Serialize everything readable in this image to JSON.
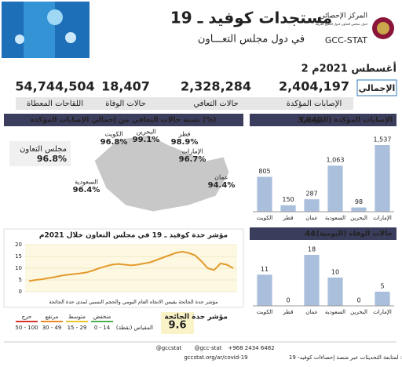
{
  "header": {
    "title": "مستجدات كوفيد ـ 19",
    "subtitle": "في دول مجلس التعـــاون",
    "org_ar": "المركز الإحصائي",
    "org_ar_sub": "لدول مجلس التعاون لدول الخليج العربية",
    "org_en": "GCC-STAT"
  },
  "date": "2 أغسطس 2021م",
  "totals": {
    "label": "الإجمالي",
    "items": [
      {
        "value": "2,404,197",
        "label": "الإصابات المؤكدة"
      },
      {
        "value": "2,328,284",
        "label": "حالات التعافي"
      },
      {
        "value": "18,407",
        "label": "حالات الوفاة"
      },
      {
        "value": "54,744,504",
        "label": "اللقاحات المعطاة"
      }
    ]
  },
  "recovery": {
    "title": "نسبة حالات التعافي من إجمالي الإصابات المؤكدة (%)",
    "gcc": {
      "name": "مجلس التعاون",
      "value": "96.8%"
    },
    "regions": [
      {
        "name": "قطر",
        "value": "98.9%"
      },
      {
        "name": "البحرين",
        "value": "99.1%"
      },
      {
        "name": "الكويت",
        "value": "96.8%"
      },
      {
        "name": "الإمارات",
        "value": "96.7%"
      },
      {
        "name": "عمان",
        "value": "94.4%"
      },
      {
        "name": "السعودية",
        "value": "96.4%"
      }
    ]
  },
  "chart_data": [
    {
      "type": "line",
      "title": "مؤشر حدة كوفيد ـ 19 في مجلس التعاون خلال 2021م",
      "color": "#e39a2d",
      "values": [
        4.5,
        5,
        5.3,
        5.8,
        6.2,
        6.8,
        7.2,
        7.5,
        7.8,
        8.2,
        9,
        10,
        10.8,
        11.5,
        11.8,
        11.5,
        11.2,
        11.5,
        12,
        12.5,
        13.5,
        14.5,
        15.5,
        16.5,
        17,
        16.5,
        15.5,
        13,
        10,
        9.2,
        12,
        11.5,
        10
      ],
      "ylim": [
        0,
        20
      ],
      "yticks": [
        0,
        5,
        10,
        15,
        20
      ],
      "grid": true
    },
    {
      "type": "bar",
      "title": "الإصابات المؤكدة (اليومية)",
      "total": 3940,
      "total_label": "3,940",
      "color": "#a9bfdc",
      "categories": [
        "الكويت",
        "قطر",
        "عمان",
        "السعودية",
        "البحرين",
        "الإمارات"
      ],
      "values": [
        805,
        150,
        287,
        1063,
        98,
        1537
      ],
      "value_labels": [
        "805",
        "150",
        "287",
        "1,063",
        "98",
        "1,537"
      ]
    },
    {
      "type": "bar",
      "title": "حالات الوفاة (اليومية)",
      "total": 44,
      "color": "#a9bfdc",
      "categories": [
        "الكويت",
        "قطر",
        "عمان",
        "السعودية",
        "البحرين",
        "الإمارات"
      ],
      "values": [
        11,
        0,
        18,
        10,
        0,
        5
      ]
    }
  ],
  "severity": {
    "label": "مؤشر حدة الجائحة",
    "value": "9.6",
    "scale_label": "المقياس (نقطة)",
    "note": "مؤشر حدة الجائحة يقيس الاتجاه العام اليومي والحجم النسبي لمدى حدة الجائحة",
    "levels": [
      {
        "name": "منخفض",
        "range": "0 - 14",
        "color": "#4caf50"
      },
      {
        "name": "متوسط",
        "range": "15 - 29",
        "color": "#e8c72a"
      },
      {
        "name": "مرتفع",
        "range": "30 - 49",
        "color": "#f08a24"
      },
      {
        "name": "حرج",
        "range": "50 - 100",
        "color": "#d9342b"
      }
    ]
  },
  "footer": {
    "phone": "+968 2434 6482",
    "handle1": "@gcc-stat",
    "handle2": "@gccstat",
    "text": "لمتابعة التحديثات عبر منصة إحصاءات كوفيد- 19 :",
    "url": "gccstat.org/ar/covid-19"
  }
}
